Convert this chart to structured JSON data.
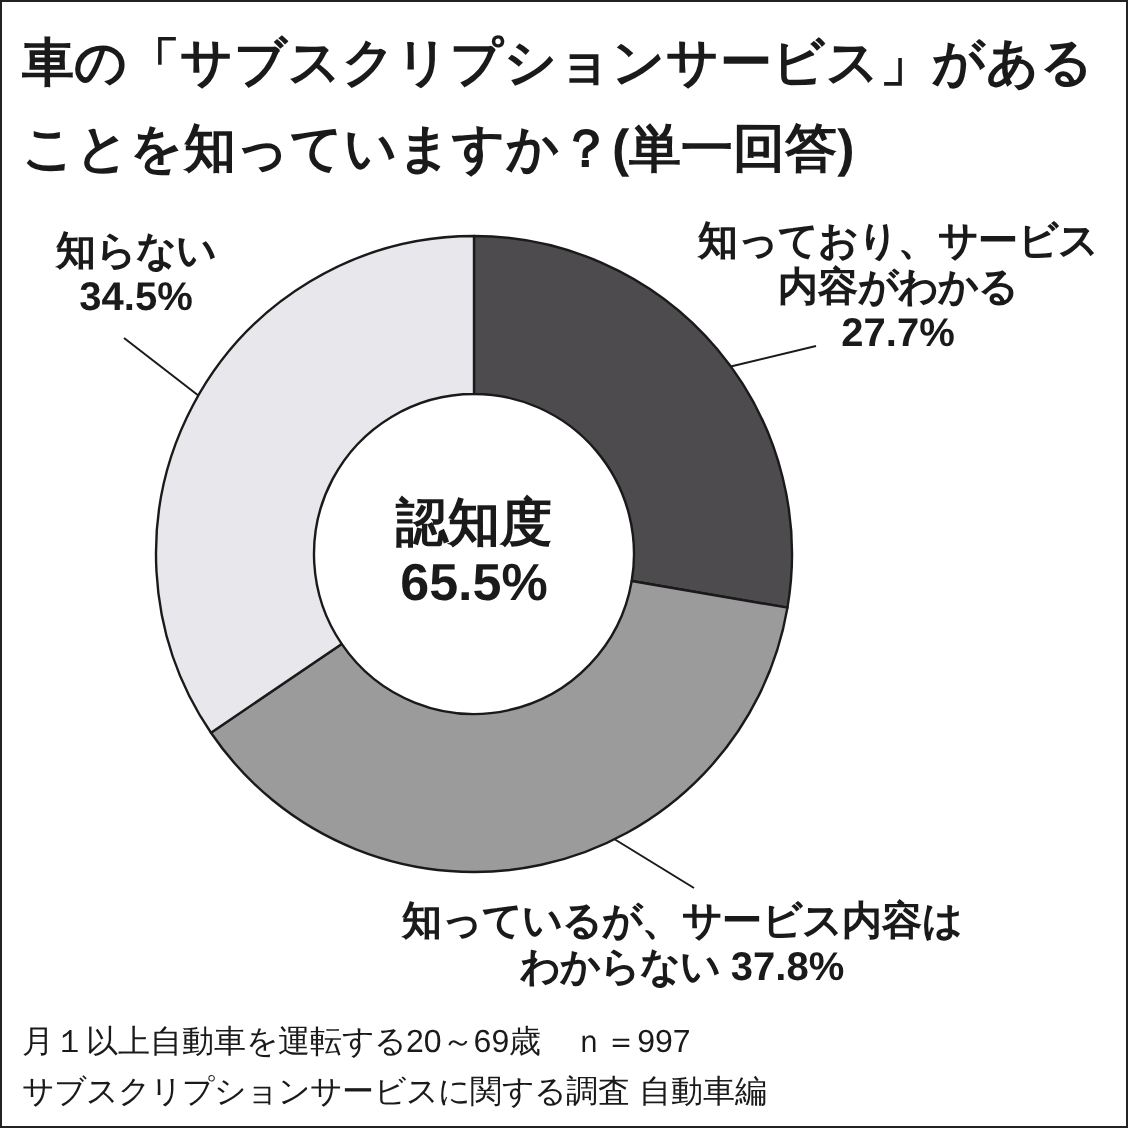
{
  "chart_data": {
    "type": "donut",
    "title": "車の「サブスクリプションサービス」があることを知っていますか？(単一回答)",
    "categories": [
      "知っており、サービス内容がわかる",
      "知っているが、サービス内容はわからない",
      "知らない"
    ],
    "values": [
      27.7,
      37.8,
      34.5
    ],
    "colors": [
      "#4d4b4e",
      "#9b9b9b",
      "#e8e8ec"
    ],
    "value_labels": [
      "27.7%",
      "37.8%",
      "34.5%"
    ],
    "annotations": [
      "認知度 65.5%",
      "月１以上自動車を運転する20～69歳　ｎ＝997",
      "サブスクリプションサービスに関する調査 自動車編"
    ]
  }
}
